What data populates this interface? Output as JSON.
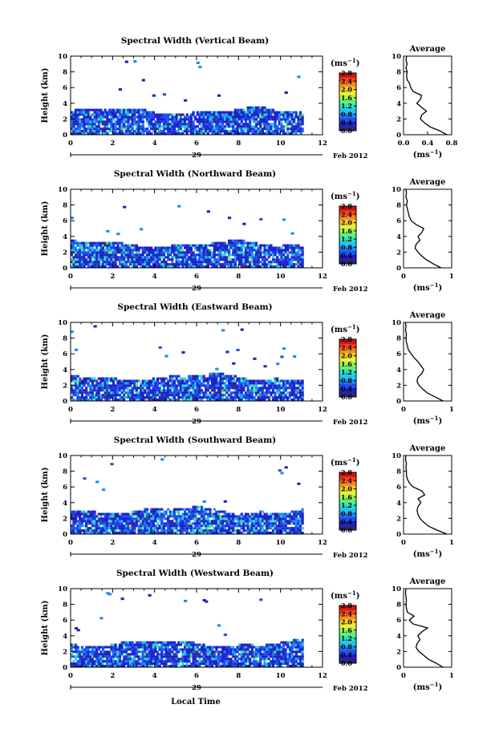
{
  "figure": {
    "xlabel": "Local Time",
    "day_label": "29",
    "month_label": "Feb 2012",
    "ylabel": "Height (km)",
    "cbar_unit": "(ms",
    "cbar_unit_exp": "−1",
    "avg_title": "Average",
    "avg_xunit": "(ms",
    "avg_xunit_exp": "−1"
  },
  "colormap": [
    "#2a2a7a",
    "#2020c8",
    "#2050f0",
    "#1e88f5",
    "#22c4ee",
    "#30e0c0",
    "#5af080",
    "#a8f050",
    "#e8f03a",
    "#f8c828",
    "#f88a20",
    "#f04018",
    "#d01414"
  ],
  "chart_data": [
    {
      "type": "heatmap",
      "title": "Spectral Width (Vertical Beam)",
      "x_ticks": [
        "0",
        "2",
        "4",
        "6",
        "8",
        "10",
        "12"
      ],
      "xlim": [
        0,
        12
      ],
      "y_ticks": [
        "0",
        "2",
        "4",
        "6",
        "8",
        "10"
      ],
      "ylim": [
        0,
        10
      ],
      "cbar_ticks": [
        "0.0",
        "0.4",
        "0.8",
        "1.2",
        "1.6",
        "2.0",
        "2.4",
        "2.8"
      ],
      "cbar_range": [
        0,
        2.8
      ],
      "avg": {
        "xlim": [
          0,
          0.8
        ],
        "x_ticks": [
          "0.0",
          "0.4",
          "0.8"
        ],
        "height": [
          0,
          0.5,
          1,
          1.5,
          2,
          2.5,
          3,
          3.5,
          4,
          4.5,
          5,
          5.5,
          6,
          6.5,
          7,
          7.5,
          8,
          8.5,
          9,
          9.5,
          10
        ],
        "width": [
          0.72,
          0.6,
          0.44,
          0.35,
          0.28,
          0.3,
          0.38,
          0.3,
          0.22,
          0.28,
          0.3,
          0.16,
          0.12,
          0.1,
          0.06,
          0.05,
          0.06,
          0.04,
          0.06,
          0.04,
          0.05
        ]
      }
    },
    {
      "type": "heatmap",
      "title": "Spectral Width (Northward Beam)",
      "x_ticks": [
        "0",
        "2",
        "4",
        "6",
        "8",
        "10",
        "12"
      ],
      "xlim": [
        0,
        12
      ],
      "y_ticks": [
        "0",
        "2",
        "4",
        "6",
        "8",
        "10"
      ],
      "ylim": [
        0,
        10
      ],
      "cbar_ticks": [
        "0.0",
        "0.4",
        "0.8",
        "1.2",
        "1.6",
        "2.0",
        "2.4",
        "2.8"
      ],
      "cbar_range": [
        0,
        2.8
      ],
      "avg": {
        "xlim": [
          0,
          1
        ],
        "x_ticks": [
          "0",
          "1"
        ],
        "height": [
          0,
          0.5,
          1,
          1.5,
          2,
          2.5,
          3,
          3.5,
          4,
          4.5,
          5,
          5.5,
          6,
          6.5,
          7,
          7.5,
          8,
          8.5,
          9,
          9.5,
          10
        ],
        "width": [
          0.78,
          0.62,
          0.48,
          0.38,
          0.3,
          0.24,
          0.26,
          0.34,
          0.3,
          0.38,
          0.42,
          0.26,
          0.16,
          0.12,
          0.1,
          0.08,
          0.06,
          0.08,
          0.05,
          0.06,
          0.05
        ]
      }
    },
    {
      "type": "heatmap",
      "title": "Spectral Width (Eastward Beam)",
      "x_ticks": [
        "0",
        "2",
        "4",
        "6",
        "8",
        "10",
        "12"
      ],
      "xlim": [
        0,
        12
      ],
      "y_ticks": [
        "0",
        "2",
        "4",
        "6",
        "8",
        "10"
      ],
      "ylim": [
        0,
        10
      ],
      "cbar_ticks": [
        "0.0",
        "0.4",
        "0.8",
        "1.2",
        "1.6",
        "2.0",
        "2.4",
        "2.8"
      ],
      "cbar_range": [
        0,
        2.8
      ],
      "avg": {
        "xlim": [
          0,
          1
        ],
        "x_ticks": [
          "0",
          "1"
        ],
        "height": [
          0,
          0.5,
          1,
          1.5,
          2,
          2.5,
          3,
          3.5,
          4,
          4.5,
          5,
          5.5,
          6,
          6.5,
          7,
          7.5,
          8,
          8.5,
          9,
          9.5,
          10
        ],
        "width": [
          0.82,
          0.66,
          0.5,
          0.4,
          0.32,
          0.28,
          0.3,
          0.38,
          0.42,
          0.36,
          0.3,
          0.22,
          0.16,
          0.1,
          0.08,
          0.06,
          0.05,
          0.06,
          0.04,
          0.05,
          0.04
        ]
      }
    },
    {
      "type": "heatmap",
      "title": "Spectral Width (Southward Beam)",
      "x_ticks": [
        "0",
        "2",
        "4",
        "6",
        "8",
        "10",
        "12"
      ],
      "xlim": [
        0,
        12
      ],
      "y_ticks": [
        "0",
        "2",
        "4",
        "6",
        "8",
        "10"
      ],
      "ylim": [
        0,
        10
      ],
      "cbar_ticks": [
        "0.0",
        "0.4",
        "0.8",
        "1.2",
        "1.6",
        "2.0",
        "2.4",
        "2.8"
      ],
      "cbar_range": [
        0,
        2.8
      ],
      "avg": {
        "xlim": [
          0,
          1
        ],
        "x_ticks": [
          "0",
          "1"
        ],
        "height": [
          0,
          0.5,
          1,
          1.5,
          2,
          2.5,
          3,
          3.5,
          4,
          4.5,
          5,
          5.5,
          6,
          6.5,
          7,
          7.5,
          8,
          8.5,
          9,
          9.5,
          10
        ],
        "width": [
          0.9,
          0.7,
          0.52,
          0.42,
          0.34,
          0.3,
          0.28,
          0.3,
          0.36,
          0.3,
          0.44,
          0.38,
          0.2,
          0.12,
          0.08,
          0.06,
          0.06,
          0.05,
          0.06,
          0.04,
          0.05
        ]
      }
    },
    {
      "type": "heatmap",
      "title": "Spectral Width (Westward Beam)",
      "x_ticks": [
        "0",
        "2",
        "4",
        "6",
        "8",
        "10",
        "12"
      ],
      "xlim": [
        0,
        12
      ],
      "y_ticks": [
        "0",
        "2",
        "4",
        "6",
        "8",
        "10"
      ],
      "ylim": [
        0,
        10
      ],
      "cbar_ticks": [
        "0.0",
        "0.4",
        "0.8",
        "1.2",
        "1.6",
        "2.0",
        "2.4",
        "2.8"
      ],
      "cbar_range": [
        0,
        2.8
      ],
      "avg": {
        "xlim": [
          0,
          1
        ],
        "x_ticks": [
          "0",
          "1"
        ],
        "height": [
          0,
          0.5,
          1,
          1.5,
          2,
          2.5,
          3,
          3.5,
          4,
          4.5,
          5,
          5.5,
          6,
          6.5,
          7,
          7.5,
          8,
          8.5,
          9,
          9.5,
          10
        ],
        "width": [
          0.82,
          0.68,
          0.52,
          0.42,
          0.32,
          0.26,
          0.28,
          0.34,
          0.3,
          0.38,
          0.5,
          0.2,
          0.12,
          0.22,
          0.08,
          0.06,
          0.05,
          0.06,
          0.05,
          0.04,
          0.05
        ]
      }
    }
  ]
}
